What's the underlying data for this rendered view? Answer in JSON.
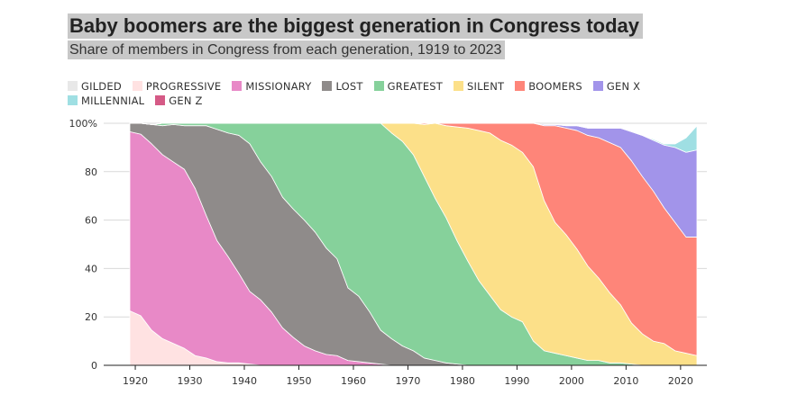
{
  "chart_data": {
    "type": "area",
    "stacked": true,
    "title": "Baby boomers are the biggest generation in Congress today",
    "subtitle": "Share of members in Congress from each generation, 1919 to 2023",
    "xlabel": "",
    "ylabel": "",
    "xlim": [
      1919,
      2023
    ],
    "ylim": [
      0,
      100
    ],
    "xticks": [
      1920,
      1930,
      1940,
      1950,
      1960,
      1970,
      1980,
      1990,
      2000,
      2010,
      2020
    ],
    "yticks": [
      0,
      20,
      40,
      60,
      80,
      100
    ],
    "ytick_labels": [
      "0",
      "20",
      "40",
      "60",
      "80",
      "100%"
    ],
    "legend_position": "top",
    "grid": "horizontal",
    "x": [
      1919,
      1921,
      1923,
      1925,
      1927,
      1929,
      1931,
      1933,
      1935,
      1937,
      1939,
      1941,
      1943,
      1945,
      1947,
      1949,
      1951,
      1953,
      1955,
      1957,
      1959,
      1961,
      1963,
      1965,
      1967,
      1969,
      1971,
      1973,
      1975,
      1977,
      1979,
      1981,
      1983,
      1985,
      1987,
      1989,
      1991,
      1993,
      1995,
      1997,
      1999,
      2001,
      2003,
      2005,
      2007,
      2009,
      2011,
      2013,
      2015,
      2017,
      2019,
      2021,
      2023
    ],
    "series": [
      {
        "name": "GILDED",
        "color": "#e8e8e8",
        "values": [
          0,
          0,
          0,
          0,
          0,
          0,
          0,
          0,
          0,
          0,
          0,
          0,
          0,
          0,
          0,
          0,
          0,
          0,
          0,
          0,
          0,
          0,
          0,
          0,
          0,
          0,
          0,
          0,
          0,
          0,
          0,
          0,
          0,
          0,
          0,
          0,
          0,
          0,
          0,
          0,
          0,
          0,
          0,
          0,
          0,
          0,
          0,
          0,
          0,
          0,
          0,
          0,
          0
        ]
      },
      {
        "name": "PROGRESSIVE",
        "color": "#ffe2e2",
        "values": [
          22.5,
          20.5,
          14.5,
          11,
          9,
          7,
          4,
          3,
          1.5,
          1,
          1,
          0.5,
          0,
          0,
          0,
          0,
          0,
          0,
          0,
          0,
          0,
          0,
          0,
          0,
          0,
          0,
          0,
          0,
          0,
          0,
          0,
          0,
          0,
          0,
          0,
          0,
          0,
          0,
          0,
          0,
          0,
          0,
          0,
          0,
          0,
          0,
          0,
          0,
          0,
          0,
          0,
          0,
          0
        ]
      },
      {
        "name": "MISSIONARY",
        "color": "#e889c7",
        "values": [
          74,
          75,
          77,
          76,
          75,
          74,
          69,
          59,
          50,
          44,
          37,
          30,
          27,
          22,
          15.5,
          11.5,
          8,
          6,
          4.5,
          4,
          2,
          1.5,
          1,
          0.5,
          0,
          0,
          0,
          0,
          0,
          0,
          0,
          0,
          0,
          0,
          0,
          0,
          0,
          0,
          0,
          0,
          0,
          0,
          0,
          0,
          0,
          0,
          0,
          0,
          0,
          0,
          0,
          0,
          0
        ]
      },
      {
        "name": "LOST",
        "color": "#8f8b8a",
        "values": [
          3.5,
          4.5,
          8,
          12,
          15.5,
          18,
          26,
          37,
          46,
          51,
          57,
          61,
          57,
          56,
          54,
          53,
          52,
          49,
          44,
          40,
          30,
          27,
          21,
          14,
          11,
          8,
          6,
          3,
          2,
          1,
          0.5,
          0,
          0,
          0,
          0,
          0,
          0,
          0,
          0,
          0,
          0,
          0,
          0,
          0,
          0,
          0,
          0,
          0,
          0,
          0,
          0,
          0,
          0
        ]
      },
      {
        "name": "GREATEST",
        "color": "#86d19b",
        "values": [
          0,
          0,
          0,
          1,
          0.5,
          1,
          1,
          1,
          2.5,
          4,
          5,
          8.5,
          16,
          22,
          30.5,
          35.5,
          40,
          45,
          51.5,
          56,
          68,
          71.5,
          78,
          85.5,
          85,
          84.5,
          81,
          75,
          67,
          60,
          51,
          43,
          35,
          29,
          23,
          20,
          18,
          10,
          6,
          5,
          4,
          3,
          2,
          2,
          1,
          1,
          0.5,
          0,
          0,
          0,
          0,
          0,
          0
        ]
      },
      {
        "name": "SILENT",
        "color": "#fce089",
        "values": [
          0,
          0,
          0,
          0,
          0,
          0,
          0,
          0,
          0,
          0,
          0,
          0,
          0,
          0,
          0,
          0,
          0,
          0,
          0,
          0,
          0,
          0,
          0,
          0,
          4,
          7.5,
          13,
          21.5,
          31,
          38,
          47,
          55,
          62,
          67,
          70,
          71,
          70,
          72,
          62,
          54,
          50,
          45,
          39,
          34,
          29,
          24,
          17,
          13,
          10,
          9,
          6,
          5,
          4
        ]
      },
      {
        "name": "BOOMERS",
        "color": "#fe8579",
        "values": [
          0,
          0,
          0,
          0,
          0,
          0,
          0,
          0,
          0,
          0,
          0,
          0,
          0,
          0,
          0,
          0,
          0,
          0,
          0,
          0,
          0,
          0,
          0,
          0,
          0,
          0,
          0,
          0.5,
          0,
          1,
          1.5,
          2,
          3,
          4,
          7,
          9,
          12,
          18,
          31,
          40,
          44,
          49,
          54,
          58,
          62,
          65,
          67,
          65,
          62,
          56,
          53,
          48,
          49
        ]
      },
      {
        "name": "GEN X",
        "color": "#a294ea",
        "values": [
          0,
          0,
          0,
          0,
          0,
          0,
          0,
          0,
          0,
          0,
          0,
          0,
          0,
          0,
          0,
          0,
          0,
          0,
          0,
          0,
          0,
          0,
          0,
          0,
          0,
          0,
          0,
          0,
          0,
          0,
          0,
          0,
          0,
          0,
          0,
          0,
          0,
          0,
          0.5,
          0.5,
          1,
          2,
          3,
          4,
          6,
          8,
          12,
          17,
          21,
          26,
          31,
          35,
          36
        ]
      },
      {
        "name": "MILLENNIAL",
        "color": "#9fdfe3",
        "values": [
          0,
          0,
          0,
          0,
          0,
          0,
          0,
          0,
          0,
          0,
          0,
          0,
          0,
          0,
          0,
          0,
          0,
          0,
          0,
          0,
          0,
          0,
          0,
          0,
          0,
          0,
          0,
          0,
          0,
          0,
          0,
          0,
          0,
          0,
          0,
          0,
          0,
          0,
          0,
          0,
          0,
          0,
          0,
          0,
          0,
          0,
          0,
          0,
          0.5,
          0.5,
          1.5,
          6,
          10
        ]
      },
      {
        "name": "GEN Z",
        "color": "#d55a86",
        "values": [
          0,
          0,
          0,
          0,
          0,
          0,
          0,
          0,
          0,
          0,
          0,
          0,
          0,
          0,
          0,
          0,
          0,
          0,
          0,
          0,
          0,
          0,
          0,
          0,
          0,
          0,
          0,
          0,
          0,
          0,
          0,
          0,
          0,
          0,
          0,
          0,
          0,
          0,
          0,
          0,
          0,
          0,
          0,
          0,
          0,
          0,
          0,
          0,
          0,
          0,
          0,
          0,
          0.2
        ]
      }
    ]
  }
}
